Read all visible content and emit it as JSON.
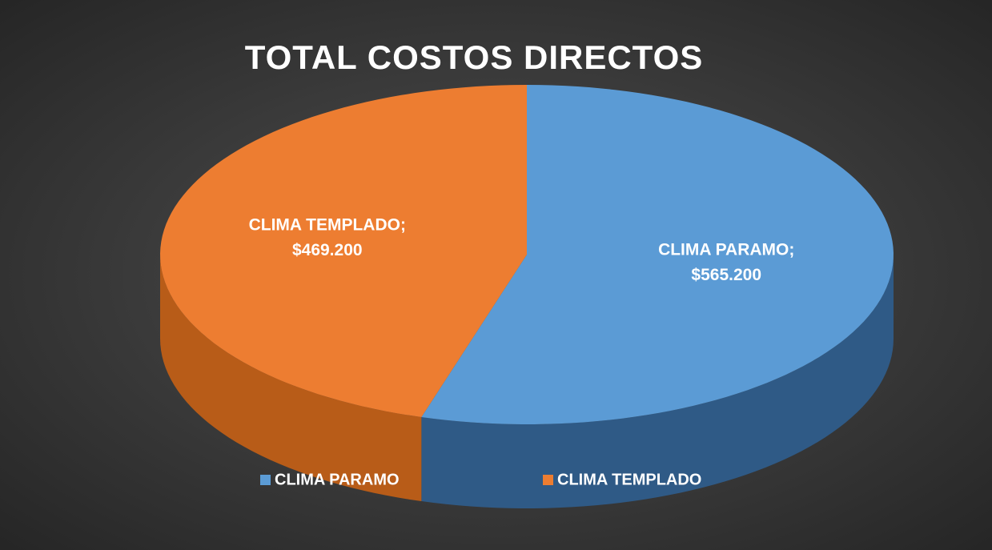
{
  "chart_data": {
    "type": "pie3d",
    "title": "TOTAL COSTOS DIRECTOS",
    "categories": [
      "CLIMA PARAMO",
      "CLIMA TEMPLADO"
    ],
    "values": [
      565200,
      469200
    ],
    "value_labels": [
      "$565.200",
      "$469.200"
    ],
    "label_separator": ";",
    "colors": [
      "#5b9bd5",
      "#ed7d31"
    ],
    "side_colors": [
      "#2f5a86",
      "#b85c18"
    ],
    "legend": "bottom"
  }
}
